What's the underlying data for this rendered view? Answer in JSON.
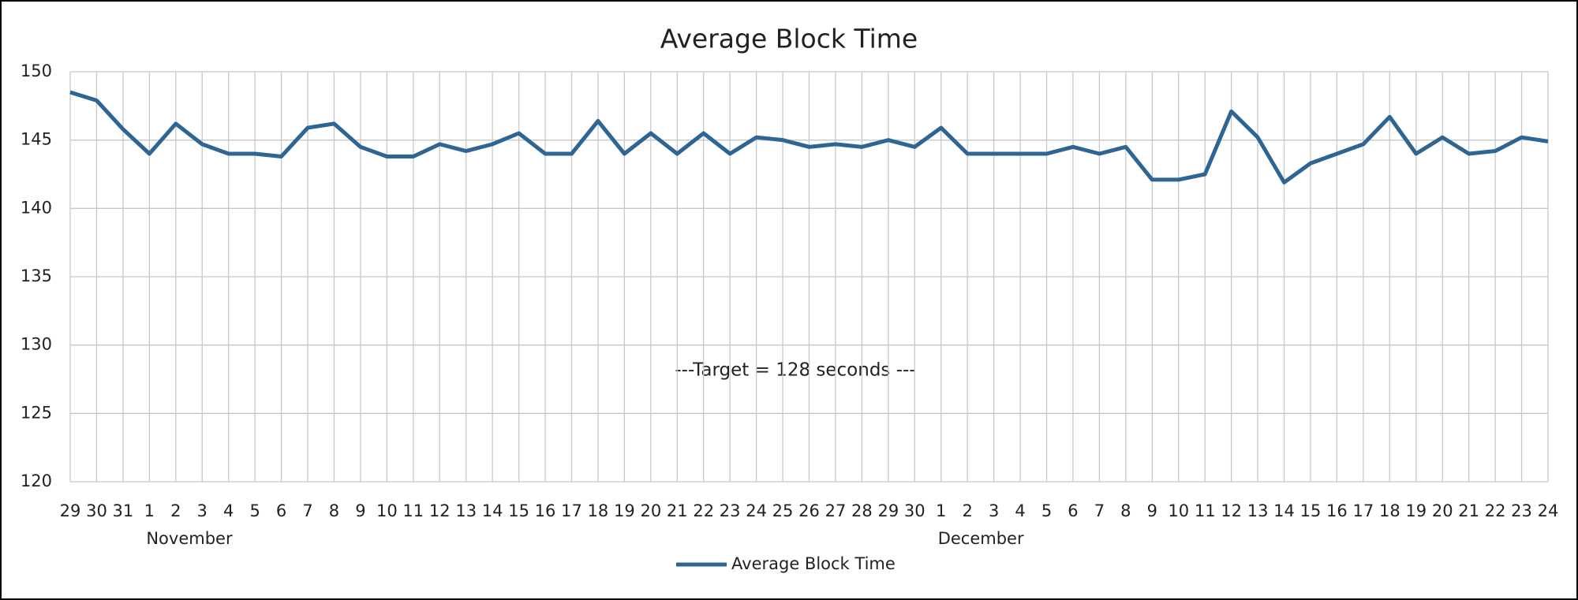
{
  "chart_data": {
    "type": "line",
    "title": "Average Block Time",
    "annotation": "---Target = 128 seconds ---",
    "categories": [
      "29",
      "30",
      "31",
      "1",
      "2",
      "3",
      "4",
      "5",
      "6",
      "7",
      "8",
      "9",
      "10",
      "11",
      "12",
      "13",
      "14",
      "15",
      "16",
      "17",
      "18",
      "19",
      "20",
      "21",
      "22",
      "23",
      "24",
      "25",
      "26",
      "27",
      "28",
      "29",
      "30",
      "1",
      "2",
      "3",
      "4",
      "5",
      "6",
      "7",
      "8",
      "9",
      "10",
      "11",
      "12",
      "13",
      "14",
      "15",
      "16",
      "17",
      "18",
      "19",
      "20",
      "21",
      "22",
      "23",
      "24"
    ],
    "category_groups": [
      "November",
      "December"
    ],
    "series": [
      {
        "name": "Average Block Time",
        "color": "#2e6592",
        "values": [
          148.5,
          147.9,
          145.8,
          144.0,
          146.2,
          144.7,
          144.0,
          144.0,
          143.8,
          145.9,
          146.2,
          144.5,
          143.8,
          143.8,
          144.7,
          144.2,
          144.7,
          145.5,
          144.0,
          144.0,
          146.4,
          144.0,
          145.5,
          144.0,
          145.5,
          144.0,
          145.2,
          145.0,
          144.5,
          144.7,
          144.5,
          145.0,
          144.5,
          145.9,
          144.0,
          144.0,
          144.0,
          144.0,
          144.5,
          144.0,
          144.5,
          142.1,
          142.1,
          142.5,
          147.1,
          145.2,
          141.9,
          143.3,
          144.0,
          144.7,
          146.7,
          144.0,
          145.2,
          144.0,
          144.2,
          145.2,
          144.9
        ]
      }
    ],
    "ylim": [
      120,
      150
    ],
    "yticks": [
      120,
      125,
      130,
      135,
      140,
      145,
      150
    ],
    "grid": true,
    "legend": "bottom"
  }
}
